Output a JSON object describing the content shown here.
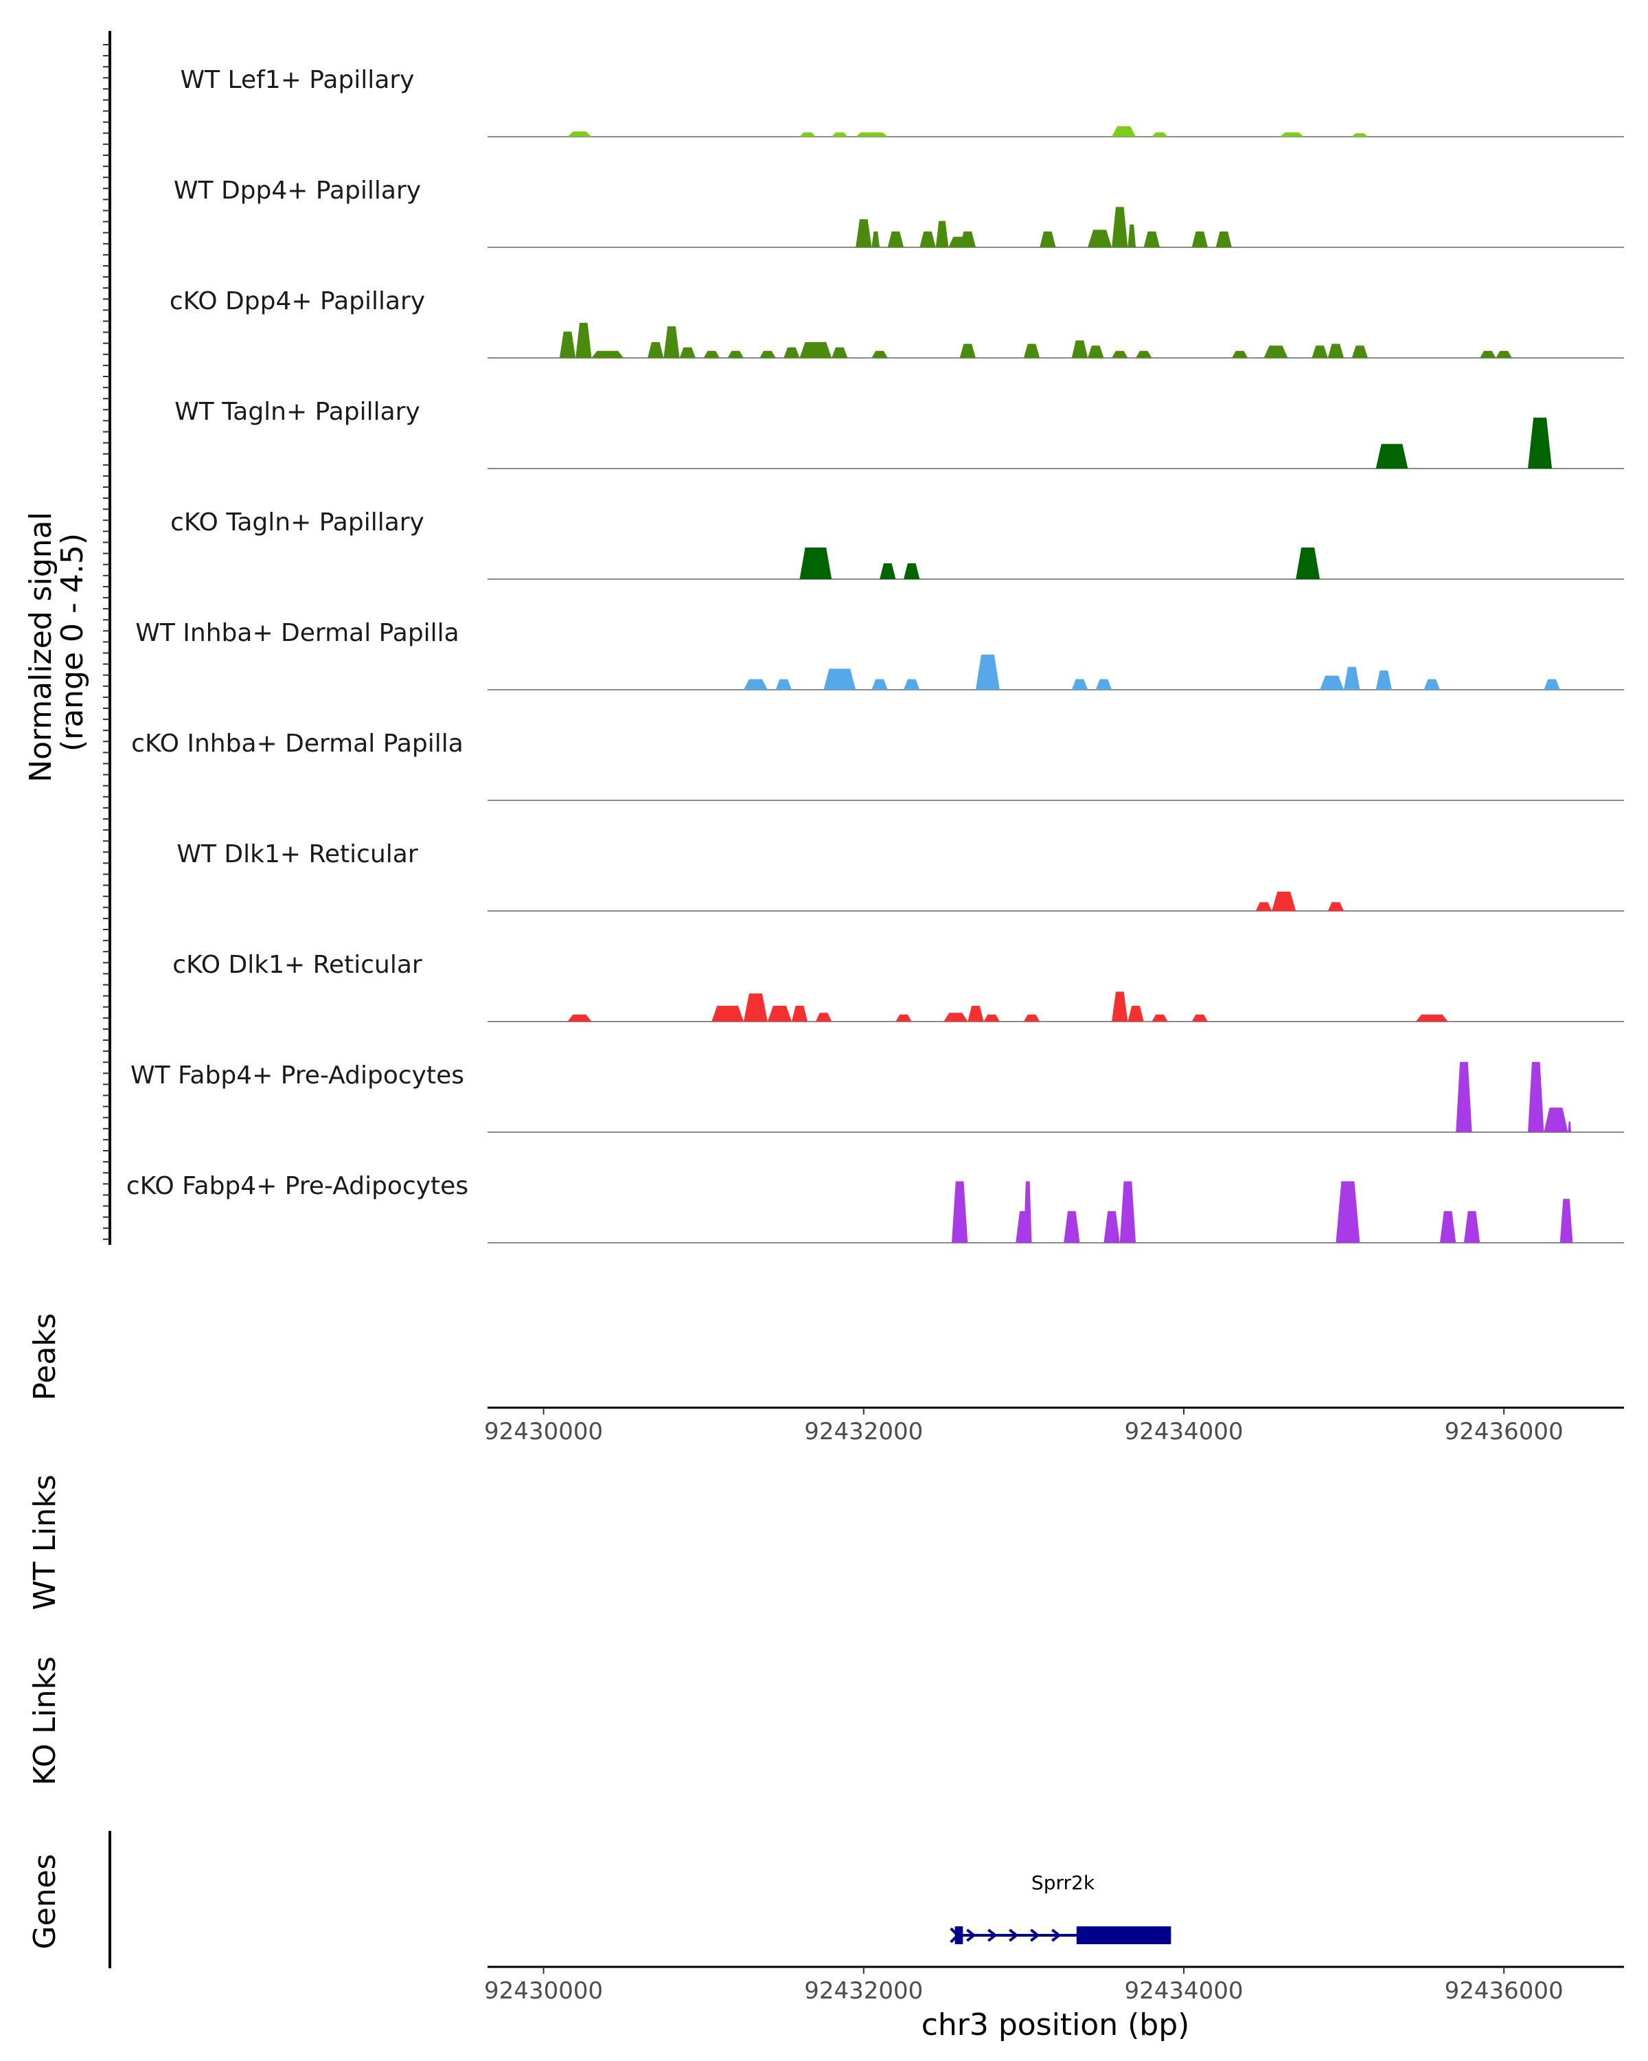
{
  "chart_data": {
    "type": "area",
    "title": "",
    "xlabel": "chr3 position (bp)",
    "ylabel": "Normalized signal\n(range 0 - 4.5)",
    "ylabel_lines": [
      "Normalized signal",
      "(range 0 - 4.5)"
    ],
    "ylim": [
      0,
      4.5
    ],
    "xlim": [
      92429650,
      92436750
    ],
    "x_ticks": [
      92430000,
      92432000,
      92434000,
      92436000
    ],
    "x_tick_labels": [
      "92430000",
      "92432000",
      "92434000",
      "92436000"
    ],
    "panel_labels": {
      "peaks": "Peaks",
      "wt_links": "WT Links",
      "ko_links": "KO Links",
      "genes": "Genes"
    },
    "tracks": [
      {
        "name": "WT Lef1+ Papillary",
        "color": "#7ccd1c",
        "peaks": [
          [
            92430150,
            92430300,
            0.3
          ],
          [
            92431600,
            92431700,
            0.25
          ],
          [
            92431800,
            92431900,
            0.25
          ],
          [
            92431950,
            92432150,
            0.25
          ],
          [
            92433550,
            92433700,
            0.6
          ],
          [
            92433800,
            92433900,
            0.25
          ],
          [
            92434600,
            92434750,
            0.25
          ],
          [
            92435050,
            92435150,
            0.2
          ]
        ]
      },
      {
        "name": "WT Dpp4+ Papillary",
        "color": "#4a8a0c",
        "peaks": [
          [
            92431950,
            92432050,
            1.6
          ],
          [
            92432050,
            92432100,
            0.9
          ],
          [
            92432150,
            92432250,
            0.9
          ],
          [
            92432350,
            92432450,
            0.9
          ],
          [
            92432450,
            92432530,
            1.5
          ],
          [
            92432530,
            92432650,
            0.6
          ],
          [
            92432600,
            92432700,
            0.9
          ],
          [
            92433100,
            92433200,
            0.9
          ],
          [
            92433400,
            92433550,
            1.0
          ],
          [
            92433550,
            92433650,
            2.3
          ],
          [
            92433650,
            92433700,
            1.3
          ],
          [
            92433750,
            92433850,
            0.9
          ],
          [
            92434050,
            92434150,
            0.9
          ],
          [
            92434200,
            92434300,
            0.9
          ]
        ]
      },
      {
        "name": "cKO Dpp4+ Papillary",
        "color": "#4a8a0c",
        "peaks": [
          [
            92430100,
            92430200,
            1.5
          ],
          [
            92430200,
            92430300,
            2.0
          ],
          [
            92430300,
            92430500,
            0.4
          ],
          [
            92430650,
            92430750,
            0.9
          ],
          [
            92430750,
            92430850,
            1.8
          ],
          [
            92430850,
            92430950,
            0.6
          ],
          [
            92431000,
            92431100,
            0.4
          ],
          [
            92431150,
            92431250,
            0.4
          ],
          [
            92431350,
            92431450,
            0.4
          ],
          [
            92431500,
            92431600,
            0.6
          ],
          [
            92431600,
            92431800,
            0.9
          ],
          [
            92431800,
            92431900,
            0.6
          ],
          [
            92432050,
            92432150,
            0.4
          ],
          [
            92432600,
            92432700,
            0.8
          ],
          [
            92433000,
            92433100,
            0.8
          ],
          [
            92433300,
            92433400,
            1.0
          ],
          [
            92433400,
            92433500,
            0.7
          ],
          [
            92433550,
            92433650,
            0.4
          ],
          [
            92433700,
            92433800,
            0.4
          ],
          [
            92434300,
            92434400,
            0.4
          ],
          [
            92434500,
            92434650,
            0.7
          ],
          [
            92434800,
            92434900,
            0.7
          ],
          [
            92434900,
            92435000,
            0.8
          ],
          [
            92435050,
            92435150,
            0.7
          ],
          [
            92435850,
            92435950,
            0.4
          ],
          [
            92435950,
            92436050,
            0.4
          ]
        ]
      },
      {
        "name": "WT Tagln+ Papillary",
        "color": "#006400",
        "peaks": [
          [
            92435200,
            92435400,
            1.4
          ],
          [
            92436150,
            92436300,
            2.9
          ]
        ]
      },
      {
        "name": "cKO Tagln+ Papillary",
        "color": "#006400",
        "peaks": [
          [
            92431600,
            92431800,
            1.8
          ],
          [
            92432100,
            92432200,
            0.9
          ],
          [
            92432250,
            92432350,
            0.9
          ],
          [
            92434700,
            92434850,
            1.8
          ]
        ]
      },
      {
        "name": "WT Inhba+ Dermal Papilla",
        "color": "#56a9e8",
        "peaks": [
          [
            92431250,
            92431400,
            0.6
          ],
          [
            92431450,
            92431550,
            0.6
          ],
          [
            92431750,
            92431950,
            1.2
          ],
          [
            92432050,
            92432150,
            0.6
          ],
          [
            92432250,
            92432350,
            0.6
          ],
          [
            92432700,
            92432850,
            2.0
          ],
          [
            92433300,
            92433400,
            0.6
          ],
          [
            92433450,
            92433550,
            0.6
          ],
          [
            92434850,
            92435000,
            0.8
          ],
          [
            92435000,
            92435100,
            1.3
          ],
          [
            92435200,
            92435300,
            1.1
          ],
          [
            92435500,
            92435600,
            0.6
          ],
          [
            92436250,
            92436350,
            0.6
          ]
        ]
      },
      {
        "name": "cKO Inhba+ Dermal Papilla",
        "color": "#56a9e8",
        "peaks": []
      },
      {
        "name": "WT Dlk1+ Reticular",
        "color": "#f53030",
        "peaks": [
          [
            92434450,
            92434550,
            0.5
          ],
          [
            92434550,
            92434700,
            1.1
          ],
          [
            92434900,
            92435000,
            0.5
          ]
        ]
      },
      {
        "name": "cKO Dlk1+ Reticular",
        "color": "#f53030",
        "peaks": [
          [
            92430150,
            92430300,
            0.4
          ],
          [
            92431050,
            92431250,
            0.9
          ],
          [
            92431250,
            92431400,
            1.6
          ],
          [
            92431400,
            92431550,
            0.9
          ],
          [
            92431550,
            92431650,
            0.9
          ],
          [
            92431700,
            92431800,
            0.5
          ],
          [
            92432200,
            92432300,
            0.4
          ],
          [
            92432500,
            92432650,
            0.5
          ],
          [
            92432650,
            92432750,
            0.9
          ],
          [
            92432750,
            92432850,
            0.4
          ],
          [
            92433000,
            92433100,
            0.4
          ],
          [
            92433550,
            92433650,
            1.7
          ],
          [
            92433650,
            92433750,
            0.9
          ],
          [
            92433800,
            92433900,
            0.4
          ],
          [
            92434050,
            92434150,
            0.4
          ],
          [
            92435450,
            92435650,
            0.4
          ]
        ]
      },
      {
        "name": "WT Fabp4+ Pre-Adipocytes",
        "color": "#a83ae8",
        "peaks": [
          [
            92435700,
            92435800,
            4.0
          ],
          [
            92436150,
            92436250,
            4.0
          ],
          [
            92436250,
            92436400,
            1.4
          ],
          [
            92436400,
            92436420,
            0.6
          ]
        ]
      },
      {
        "name": "cKO Fabp4+ Pre-Adipocytes",
        "color": "#a83ae8",
        "peaks": [
          [
            92432550,
            92432650,
            3.5
          ],
          [
            92432950,
            92433050,
            1.8
          ],
          [
            92433000,
            92433050,
            3.5
          ],
          [
            92433250,
            92433350,
            1.8
          ],
          [
            92433500,
            92433600,
            1.8
          ],
          [
            92433600,
            92433700,
            3.5
          ],
          [
            92434950,
            92435100,
            3.5
          ],
          [
            92435600,
            92435700,
            1.8
          ],
          [
            92435750,
            92435850,
            1.8
          ],
          [
            92436350,
            92436430,
            2.5
          ]
        ]
      }
    ],
    "gene": {
      "name": "Sprr2k",
      "start": 92432570,
      "end": 92433920,
      "strand": "+",
      "exons": [
        [
          92432570,
          92432620
        ],
        [
          92433330,
          92433920
        ]
      ],
      "color": "#00008b"
    }
  }
}
